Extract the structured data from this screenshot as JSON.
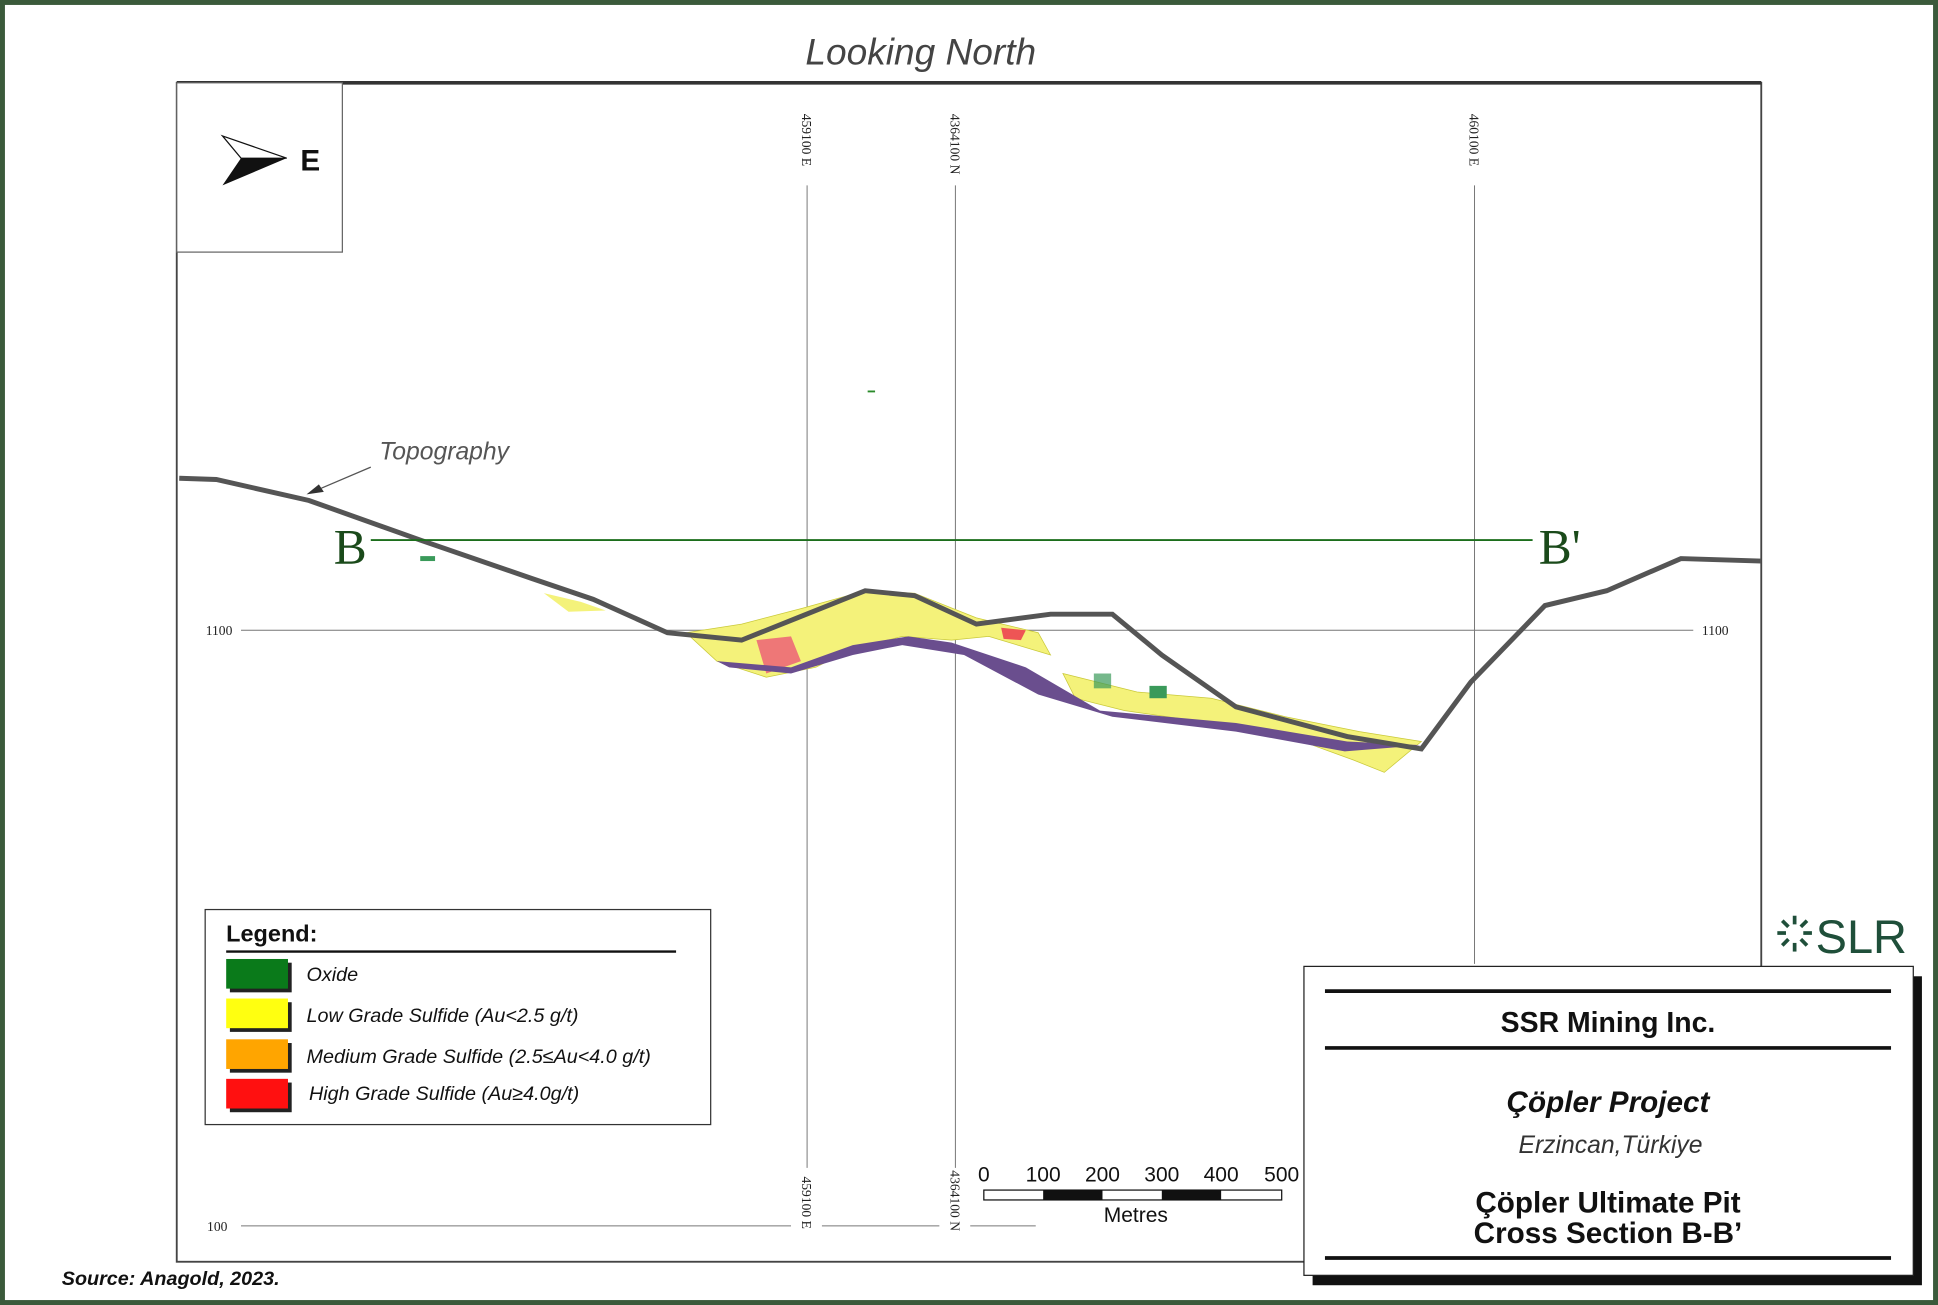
{
  "figure": {
    "view_title": "Looking North",
    "north_arrow": "E",
    "grid_labels": {
      "top": [
        "459100 E",
        "4364100 N",
        "460100 E"
      ],
      "bottom": [
        "459100 E",
        "4364100 N"
      ]
    },
    "elevation_labels": {
      "left": [
        "1100",
        "100"
      ],
      "right": [
        "1100"
      ]
    },
    "topography_label": "Topography",
    "section_ends": [
      "B",
      "B'"
    ],
    "legend": {
      "title": "Legend:",
      "items": [
        "Oxide",
        "Low Grade Sulfide (Au<2.5 g/t)",
        "Medium Grade Sulfide (2.5≤Au<4.0 g/t)",
        "High Grade Sulfide (Au≥4.0g/t)"
      ]
    },
    "scale_bar": {
      "ticks": [
        "0",
        "100",
        "200",
        "300",
        "400",
        "500"
      ],
      "unit": "Metres"
    },
    "logo": "SLR",
    "title_block": {
      "company": "SSR Mining Inc.",
      "project": "Çöpler Project",
      "location": "Erzincan,Türkiye",
      "title_lines": [
        "Çöpler Ultimate Pit",
        "Cross Section B-B’"
      ]
    },
    "source": "Source:  Anagold, 2023."
  }
}
